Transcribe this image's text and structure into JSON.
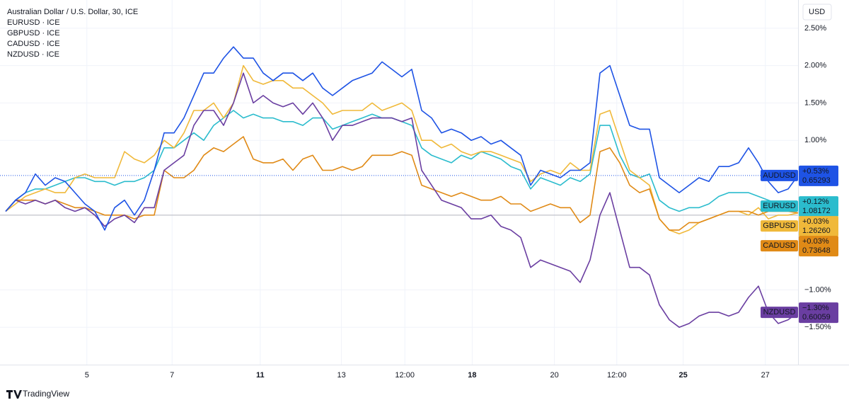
{
  "chart_data": {
    "type": "line",
    "title": "Australian Dollar / U.S. Dollar, 30, ICE",
    "currency": "USD",
    "watermark": "TradingView",
    "x": [
      0,
      1,
      2,
      3,
      4,
      5,
      6,
      7,
      8,
      9,
      10,
      11,
      12,
      13,
      14,
      15,
      16,
      17,
      18,
      19,
      20,
      21,
      22,
      23,
      24,
      25,
      26,
      27,
      28,
      29,
      30,
      31,
      32,
      33,
      34,
      35,
      36,
      37,
      38,
      39,
      40,
      41,
      42,
      43,
      44,
      45,
      46,
      47,
      48,
      49,
      50,
      51,
      52,
      53,
      54,
      55,
      56,
      57,
      58,
      59,
      60,
      61,
      62,
      63,
      64,
      65,
      66,
      67,
      68,
      69,
      70,
      71,
      72,
      73,
      74,
      75,
      76,
      77,
      78,
      79,
      80
    ],
    "xlim": [
      0,
      80
    ],
    "xticks": [
      {
        "value": 8.2,
        "label": "5"
      },
      {
        "value": 16.8,
        "label": "7"
      },
      {
        "value": 25.7,
        "label": "11",
        "bold": true
      },
      {
        "value": 33.9,
        "label": "13"
      },
      {
        "value": 40.3,
        "label": "12:00"
      },
      {
        "value": 47.1,
        "label": "18",
        "bold": true
      },
      {
        "value": 55.4,
        "label": "20"
      },
      {
        "value": 61.7,
        "label": "12:00"
      },
      {
        "value": 68.4,
        "label": "25",
        "bold": true
      },
      {
        "value": 76.7,
        "label": "27"
      }
    ],
    "ylim": [
      -2.0,
      2.83
    ],
    "yticks": [
      {
        "value": 2.5,
        "label": "2.50%"
      },
      {
        "value": 2.0,
        "label": "2.00%"
      },
      {
        "value": 1.5,
        "label": "1.50%"
      },
      {
        "value": 1.0,
        "label": "1.00%"
      },
      {
        "value": -1.0,
        "label": "−1.00%"
      },
      {
        "value": -1.5,
        "label": "−1.50%"
      }
    ],
    "baseline": 0,
    "grid": true,
    "series": [
      {
        "name": "AUDUSD",
        "color": "#1e53e5",
        "change_label": "+0.53%",
        "price": "0.65293",
        "values": [
          0.05,
          0.2,
          0.3,
          0.55,
          0.4,
          0.5,
          0.45,
          0.3,
          0.15,
          0.05,
          -0.2,
          0.1,
          0.2,
          0.0,
          0.2,
          0.6,
          1.1,
          1.1,
          1.3,
          1.6,
          1.9,
          1.9,
          2.1,
          2.25,
          2.1,
          2.1,
          1.9,
          1.8,
          1.9,
          1.9,
          1.8,
          1.9,
          1.7,
          1.6,
          1.7,
          1.8,
          1.85,
          1.9,
          2.05,
          1.95,
          1.85,
          1.95,
          1.4,
          1.3,
          1.1,
          1.15,
          1.1,
          1.0,
          1.05,
          0.95,
          1.0,
          0.9,
          0.8,
          0.4,
          0.6,
          0.55,
          0.5,
          0.6,
          0.6,
          0.7,
          1.9,
          2.0,
          1.6,
          1.2,
          1.15,
          1.15,
          0.5,
          0.4,
          0.3,
          0.4,
          0.5,
          0.45,
          0.65,
          0.65,
          0.7,
          0.9,
          0.7,
          0.45,
          0.3,
          0.35,
          0.53
        ]
      },
      {
        "name": "EURUSD",
        "legend": "EURUSD · ICE",
        "color": "#2bbccd",
        "change_label": "+0.12%",
        "price": "1.08172",
        "values": [
          0.05,
          0.2,
          0.3,
          0.35,
          0.35,
          0.4,
          0.45,
          0.5,
          0.5,
          0.45,
          0.45,
          0.4,
          0.45,
          0.45,
          0.5,
          0.6,
          0.9,
          0.9,
          1.0,
          1.1,
          1.0,
          1.2,
          1.3,
          1.4,
          1.3,
          1.35,
          1.3,
          1.3,
          1.25,
          1.25,
          1.2,
          1.3,
          1.3,
          1.15,
          1.2,
          1.25,
          1.3,
          1.35,
          1.3,
          1.3,
          1.25,
          1.2,
          0.9,
          0.8,
          0.75,
          0.7,
          0.8,
          0.75,
          0.85,
          0.8,
          0.75,
          0.65,
          0.6,
          0.35,
          0.5,
          0.45,
          0.4,
          0.5,
          0.45,
          0.55,
          1.2,
          1.2,
          0.8,
          0.55,
          0.5,
          0.55,
          0.2,
          0.1,
          0.05,
          0.1,
          0.1,
          0.15,
          0.25,
          0.3,
          0.3,
          0.3,
          0.25,
          0.2,
          0.15,
          0.15,
          0.12
        ]
      },
      {
        "name": "GBPUSD",
        "legend": "GBPUSD · ICE",
        "color": "#f0b93a",
        "change_label": "+0.03%",
        "price": "1.26260",
        "values": [
          0.05,
          0.15,
          0.25,
          0.3,
          0.35,
          0.3,
          0.3,
          0.5,
          0.55,
          0.5,
          0.5,
          0.5,
          0.85,
          0.75,
          0.7,
          0.8,
          1.0,
          0.9,
          1.1,
          1.4,
          1.4,
          1.5,
          1.3,
          1.5,
          2.0,
          1.8,
          1.75,
          1.8,
          1.8,
          1.7,
          1.7,
          1.6,
          1.5,
          1.35,
          1.4,
          1.4,
          1.4,
          1.5,
          1.4,
          1.45,
          1.5,
          1.4,
          1.0,
          1.0,
          0.9,
          0.95,
          0.85,
          0.8,
          0.85,
          0.85,
          0.8,
          0.75,
          0.7,
          0.45,
          0.55,
          0.6,
          0.55,
          0.7,
          0.6,
          0.6,
          1.35,
          1.4,
          1.0,
          0.6,
          0.5,
          0.4,
          -0.05,
          -0.2,
          -0.25,
          -0.2,
          -0.1,
          -0.05,
          0.0,
          0.05,
          0.05,
          0.0,
          0.1,
          -0.05,
          0.0,
          0.0,
          0.03
        ]
      },
      {
        "name": "CADUSD",
        "legend": "CADUSD · ICE",
        "color": "#e08a16",
        "change_label": "+0.03%",
        "price": "0.73648",
        "values": [
          0.05,
          0.2,
          0.2,
          0.2,
          0.15,
          0.2,
          0.15,
          0.1,
          0.1,
          0.05,
          0.0,
          0.0,
          0.0,
          -0.05,
          0.0,
          0.0,
          0.6,
          0.5,
          0.5,
          0.6,
          0.8,
          0.9,
          0.85,
          0.95,
          1.05,
          0.75,
          0.7,
          0.7,
          0.75,
          0.6,
          0.75,
          0.8,
          0.6,
          0.6,
          0.65,
          0.6,
          0.65,
          0.8,
          0.8,
          0.8,
          0.85,
          0.8,
          0.4,
          0.35,
          0.3,
          0.25,
          0.3,
          0.25,
          0.2,
          0.2,
          0.25,
          0.15,
          0.15,
          0.05,
          0.1,
          0.15,
          0.1,
          0.1,
          -0.1,
          0.0,
          0.85,
          0.9,
          0.7,
          0.4,
          0.3,
          0.35,
          -0.05,
          -0.2,
          -0.2,
          -0.1,
          -0.1,
          -0.05,
          0.0,
          0.05,
          0.05,
          0.05,
          0.0,
          0.05,
          0.05,
          0.05,
          0.03
        ]
      },
      {
        "name": "NZDUSD",
        "legend": "NZDUSD · ICE",
        "color": "#6a3ea1",
        "change_label": "−1.30%",
        "price": "0.60059",
        "values": [
          0.05,
          0.2,
          0.15,
          0.2,
          0.15,
          0.2,
          0.1,
          0.05,
          0.1,
          0.0,
          -0.15,
          -0.05,
          0.0,
          -0.1,
          0.1,
          0.1,
          0.6,
          0.7,
          0.8,
          1.2,
          1.4,
          1.4,
          1.2,
          1.5,
          1.9,
          1.5,
          1.6,
          1.5,
          1.45,
          1.5,
          1.35,
          1.5,
          1.3,
          1.0,
          1.2,
          1.2,
          1.25,
          1.3,
          1.3,
          1.3,
          1.25,
          1.3,
          0.6,
          0.4,
          0.2,
          0.15,
          0.1,
          -0.05,
          -0.05,
          0.0,
          -0.15,
          -0.2,
          -0.3,
          -0.7,
          -0.6,
          -0.65,
          -0.7,
          -0.75,
          -0.9,
          -0.6,
          0.0,
          0.3,
          -0.2,
          -0.7,
          -0.7,
          -0.8,
          -1.2,
          -1.4,
          -1.5,
          -1.45,
          -1.35,
          -1.3,
          -1.3,
          -1.35,
          -1.3,
          -1.1,
          -0.95,
          -1.3,
          -1.45,
          -1.4,
          -1.3
        ]
      }
    ]
  }
}
